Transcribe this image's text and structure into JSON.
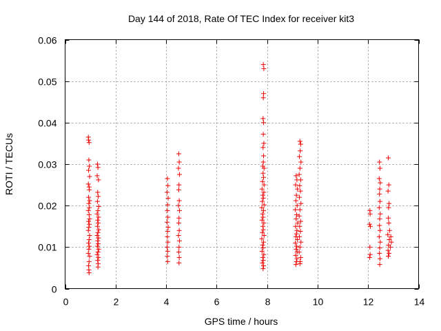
{
  "chart_data": {
    "type": "scatter",
    "title": "Day 144 of 2018, Rate Of TEC Index for receiver kit3",
    "xlabel": "GPS time / hours",
    "ylabel": "ROTI / TECUs",
    "xlim": [
      0,
      14
    ],
    "ylim": [
      0,
      0.06
    ],
    "grid": true,
    "marker": "+",
    "marker_color": "#ee0000",
    "x_ticks": [
      0,
      2,
      4,
      6,
      8,
      10,
      12,
      14
    ],
    "x_tick_labels": [
      "0",
      "2",
      "4",
      "6",
      "8",
      "10",
      "12",
      "14"
    ],
    "y_ticks": [
      0,
      0.01,
      0.02,
      0.03,
      0.04,
      0.05,
      0.06
    ],
    "y_tick_labels": [
      "0",
      "0.01",
      "0.02",
      "0.03",
      "0.04",
      "0.05",
      "0.06"
    ],
    "series": [
      {
        "name": "ROTI",
        "points": [
          [
            0.92,
            0.0365
          ],
          [
            0.93,
            0.0358
          ],
          [
            0.95,
            0.0352
          ],
          [
            0.94,
            0.031
          ],
          [
            0.96,
            0.0295
          ],
          [
            0.93,
            0.0285
          ],
          [
            0.97,
            0.027
          ],
          [
            0.92,
            0.0252
          ],
          [
            0.95,
            0.0245
          ],
          [
            0.96,
            0.0238
          ],
          [
            0.93,
            0.022
          ],
          [
            0.97,
            0.0212
          ],
          [
            0.94,
            0.0205
          ],
          [
            0.96,
            0.0195
          ],
          [
            0.92,
            0.0188
          ],
          [
            0.95,
            0.0178
          ],
          [
            0.97,
            0.0168
          ],
          [
            0.93,
            0.0162
          ],
          [
            0.96,
            0.0155
          ],
          [
            0.94,
            0.0148
          ],
          [
            0.92,
            0.014
          ],
          [
            0.97,
            0.0128
          ],
          [
            0.95,
            0.0118
          ],
          [
            0.93,
            0.011
          ],
          [
            0.96,
            0.0102
          ],
          [
            0.94,
            0.0095
          ],
          [
            0.92,
            0.0085
          ],
          [
            0.97,
            0.0078
          ],
          [
            0.95,
            0.0065
          ],
          [
            0.93,
            0.0055
          ],
          [
            0.94,
            0.0045
          ],
          [
            0.95,
            0.0038
          ],
          [
            1.28,
            0.03
          ],
          [
            1.3,
            0.0292
          ],
          [
            1.27,
            0.0272
          ],
          [
            1.32,
            0.0262
          ],
          [
            1.29,
            0.0232
          ],
          [
            1.31,
            0.0222
          ],
          [
            1.28,
            0.021
          ],
          [
            1.33,
            0.0198
          ],
          [
            1.3,
            0.0188
          ],
          [
            1.27,
            0.018
          ],
          [
            1.32,
            0.0172
          ],
          [
            1.29,
            0.0165
          ],
          [
            1.31,
            0.0158
          ],
          [
            1.28,
            0.015
          ],
          [
            1.33,
            0.0142
          ],
          [
            1.3,
            0.0135
          ],
          [
            1.27,
            0.0128
          ],
          [
            1.32,
            0.0122
          ],
          [
            1.29,
            0.0115
          ],
          [
            1.31,
            0.0108
          ],
          [
            1.28,
            0.0102
          ],
          [
            1.33,
            0.0095
          ],
          [
            1.3,
            0.0088
          ],
          [
            1.27,
            0.0082
          ],
          [
            1.32,
            0.0075
          ],
          [
            1.29,
            0.0068
          ],
          [
            1.31,
            0.006
          ],
          [
            1.3,
            0.0052
          ],
          [
            4.05,
            0.0265
          ],
          [
            4.07,
            0.0248
          ],
          [
            4.04,
            0.0232
          ],
          [
            4.08,
            0.0218
          ],
          [
            4.06,
            0.0202
          ],
          [
            4.05,
            0.0188
          ],
          [
            4.07,
            0.0172
          ],
          [
            4.04,
            0.016
          ],
          [
            4.08,
            0.0148
          ],
          [
            4.06,
            0.0138
          ],
          [
            4.05,
            0.0125
          ],
          [
            4.07,
            0.0112
          ],
          [
            4.04,
            0.01
          ],
          [
            4.06,
            0.009
          ],
          [
            4.05,
            0.0078
          ],
          [
            4.06,
            0.0065
          ],
          [
            4.5,
            0.0325
          ],
          [
            4.52,
            0.0305
          ],
          [
            4.49,
            0.029
          ],
          [
            4.53,
            0.0275
          ],
          [
            4.51,
            0.025
          ],
          [
            4.5,
            0.0238
          ],
          [
            4.52,
            0.0212
          ],
          [
            4.49,
            0.02
          ],
          [
            4.53,
            0.0188
          ],
          [
            4.51,
            0.017
          ],
          [
            4.5,
            0.0158
          ],
          [
            4.52,
            0.014
          ],
          [
            4.49,
            0.0128
          ],
          [
            4.53,
            0.0115
          ],
          [
            4.51,
            0.01
          ],
          [
            4.5,
            0.0088
          ],
          [
            4.52,
            0.0075
          ],
          [
            4.51,
            0.0062
          ],
          [
            7.85,
            0.054
          ],
          [
            7.87,
            0.053
          ],
          [
            7.86,
            0.047
          ],
          [
            7.85,
            0.046
          ],
          [
            7.84,
            0.041
          ],
          [
            7.86,
            0.04
          ],
          [
            7.85,
            0.0372
          ],
          [
            7.87,
            0.035
          ],
          [
            7.84,
            0.034
          ],
          [
            7.86,
            0.032
          ],
          [
            7.85,
            0.0305
          ],
          [
            7.83,
            0.0295
          ],
          [
            7.88,
            0.029
          ],
          [
            7.84,
            0.0278
          ],
          [
            7.86,
            0.0268
          ],
          [
            7.82,
            0.0258
          ],
          [
            7.88,
            0.025
          ],
          [
            7.8,
            0.024
          ],
          [
            7.87,
            0.0232
          ],
          [
            7.83,
            0.0225
          ],
          [
            7.85,
            0.0218
          ],
          [
            7.81,
            0.021
          ],
          [
            7.88,
            0.0202
          ],
          [
            7.79,
            0.0195
          ],
          [
            7.86,
            0.0188
          ],
          [
            7.82,
            0.018
          ],
          [
            7.84,
            0.0172
          ],
          [
            7.8,
            0.0165
          ],
          [
            7.87,
            0.0158
          ],
          [
            7.83,
            0.015
          ],
          [
            7.85,
            0.0142
          ],
          [
            7.81,
            0.0135
          ],
          [
            7.88,
            0.0128
          ],
          [
            7.79,
            0.012
          ],
          [
            7.86,
            0.0112
          ],
          [
            7.82,
            0.0105
          ],
          [
            7.84,
            0.0098
          ],
          [
            7.8,
            0.009
          ],
          [
            7.87,
            0.0082
          ],
          [
            7.83,
            0.0075
          ],
          [
            7.85,
            0.0068
          ],
          [
            7.81,
            0.0062
          ],
          [
            7.86,
            0.0055
          ],
          [
            7.84,
            0.0048
          ],
          [
            9.15,
            0.0272
          ],
          [
            9.18,
            0.0262
          ],
          [
            9.13,
            0.025
          ],
          [
            9.2,
            0.024
          ],
          [
            9.16,
            0.0225
          ],
          [
            9.14,
            0.0212
          ],
          [
            9.19,
            0.02
          ],
          [
            9.12,
            0.019
          ],
          [
            9.17,
            0.0178
          ],
          [
            9.15,
            0.0168
          ],
          [
            9.21,
            0.0158
          ],
          [
            9.13,
            0.015
          ],
          [
            9.18,
            0.014
          ],
          [
            9.16,
            0.0132
          ],
          [
            9.14,
            0.0125
          ],
          [
            9.2,
            0.0118
          ],
          [
            9.12,
            0.011
          ],
          [
            9.17,
            0.0102
          ],
          [
            9.15,
            0.0095
          ],
          [
            9.19,
            0.0088
          ],
          [
            9.13,
            0.008
          ],
          [
            9.18,
            0.0072
          ],
          [
            9.16,
            0.0065
          ],
          [
            9.14,
            0.0058
          ],
          [
            9.3,
            0.0355
          ],
          [
            9.33,
            0.0348
          ],
          [
            9.31,
            0.0332
          ],
          [
            9.28,
            0.0318
          ],
          [
            9.34,
            0.0305
          ],
          [
            9.3,
            0.029
          ],
          [
            9.27,
            0.0275
          ],
          [
            9.33,
            0.0262
          ],
          [
            9.29,
            0.0248
          ],
          [
            9.32,
            0.0235
          ],
          [
            9.28,
            0.022
          ],
          [
            9.34,
            0.0205
          ],
          [
            9.3,
            0.019
          ],
          [
            9.27,
            0.0175
          ],
          [
            9.33,
            0.0162
          ],
          [
            9.29,
            0.015
          ],
          [
            9.32,
            0.0138
          ],
          [
            9.28,
            0.0125
          ],
          [
            9.34,
            0.0112
          ],
          [
            9.3,
            0.01
          ],
          [
            9.27,
            0.0088
          ],
          [
            9.33,
            0.0075
          ],
          [
            9.31,
            0.0065
          ],
          [
            9.3,
            0.006
          ],
          [
            12.07,
            0.0188
          ],
          [
            12.08,
            0.018
          ],
          [
            12.06,
            0.0155
          ],
          [
            12.09,
            0.015
          ],
          [
            12.07,
            0.01
          ],
          [
            12.08,
            0.0082
          ],
          [
            12.06,
            0.0075
          ],
          [
            12.45,
            0.0305
          ],
          [
            12.47,
            0.029
          ],
          [
            12.44,
            0.0265
          ],
          [
            12.48,
            0.0255
          ],
          [
            12.46,
            0.024
          ],
          [
            12.45,
            0.0228
          ],
          [
            12.47,
            0.021
          ],
          [
            12.44,
            0.0195
          ],
          [
            12.48,
            0.018
          ],
          [
            12.46,
            0.0168
          ],
          [
            12.45,
            0.0152
          ],
          [
            12.47,
            0.014
          ],
          [
            12.44,
            0.0125
          ],
          [
            12.48,
            0.0112
          ],
          [
            12.46,
            0.0098
          ],
          [
            12.45,
            0.0085
          ],
          [
            12.47,
            0.0072
          ],
          [
            12.46,
            0.0058
          ],
          [
            12.8,
            0.0315
          ],
          [
            12.82,
            0.025
          ],
          [
            12.79,
            0.0235
          ],
          [
            12.83,
            0.0205
          ],
          [
            12.81,
            0.0195
          ],
          [
            12.8,
            0.017
          ],
          [
            12.82,
            0.0158
          ],
          [
            12.85,
            0.014
          ],
          [
            12.78,
            0.013
          ],
          [
            12.9,
            0.0125
          ],
          [
            12.84,
            0.0118
          ],
          [
            12.92,
            0.0112
          ],
          [
            12.81,
            0.0105
          ],
          [
            12.88,
            0.01
          ],
          [
            12.79,
            0.0092
          ],
          [
            12.83,
            0.0085
          ],
          [
            12.8,
            0.0078
          ]
        ]
      }
    ]
  }
}
